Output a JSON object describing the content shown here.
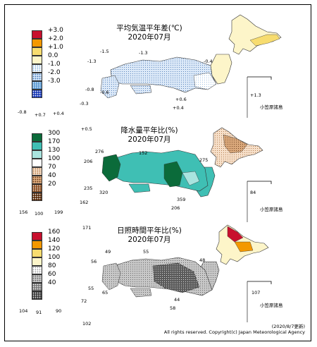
{
  "panels": [
    {
      "id": "temperature",
      "title_line1": "平均気温平年差(℃)",
      "title_line2": "2020年07月",
      "legend": [
        {
          "label": "+3.0",
          "color": "#c8102e",
          "pattern": "none"
        },
        {
          "label": "+2.0",
          "color": "#f39800",
          "pattern": "none"
        },
        {
          "label": "+1.0",
          "color": "#f7dc6f",
          "pattern": "none"
        },
        {
          "label": "0.0",
          "color": "#fdf5c9",
          "pattern": "none"
        },
        {
          "label": "-1.0",
          "color": "#ffffff",
          "pattern": "dots"
        },
        {
          "label": "-2.0",
          "color": "#cfe2f7",
          "pattern": "dots"
        },
        {
          "label": "-3.0",
          "color": "#5b9bd5",
          "pattern": "dots"
        },
        {
          "label": "",
          "color": "#1f3fb8",
          "pattern": "dots"
        }
      ],
      "station_labels": [
        "-1.5",
        "-1.3",
        "-1.3",
        "-0.4",
        "-0.8",
        "-0.6",
        "+0.6",
        "+0.4",
        "+1.3",
        "-0.8",
        "+0.7",
        "+0.4",
        "-0.3"
      ],
      "ogasawara_label": "小笠原諸島"
    },
    {
      "id": "precipitation",
      "title_line1": "降水量平年比(%)",
      "title_line2": "2020年07月",
      "legend": [
        {
          "label": "300",
          "color": "#0b6b3a",
          "pattern": "none"
        },
        {
          "label": "170",
          "color": "#3fbfb4",
          "pattern": "none"
        },
        {
          "label": "130",
          "color": "#a9e4df",
          "pattern": "none"
        },
        {
          "label": "100",
          "color": "#ffffff",
          "pattern": "none"
        },
        {
          "label": "70",
          "color": "#f6dfc9",
          "pattern": "dots"
        },
        {
          "label": "40",
          "color": "#d9a77a",
          "pattern": "dots"
        },
        {
          "label": "20",
          "color": "#8a4b1d",
          "pattern": "dots"
        },
        {
          "label": "",
          "color": "#5a2e0e",
          "pattern": "dots"
        }
      ],
      "station_labels": [
        "+0.5",
        "276",
        "152",
        "206",
        "275",
        "235",
        "320",
        "359",
        "206",
        "84",
        "156",
        "100",
        "199",
        "162"
      ],
      "ogasawara_label": "小笠原諸島"
    },
    {
      "id": "sunshine",
      "title_line1": "日照時間平年比(%)",
      "title_line2": "2020年07月",
      "legend": [
        {
          "label": "160",
          "color": "#c8102e",
          "pattern": "none"
        },
        {
          "label": "140",
          "color": "#f39800",
          "pattern": "none"
        },
        {
          "label": "120",
          "color": "#f7dc6f",
          "pattern": "none"
        },
        {
          "label": "100",
          "color": "#fdf5c9",
          "pattern": "none"
        },
        {
          "label": "80",
          "color": "#ffffff",
          "pattern": "dots"
        },
        {
          "label": "60",
          "color": "#c8c8c8",
          "pattern": "dots"
        },
        {
          "label": "40",
          "color": "#7a7a7a",
          "pattern": "dots"
        },
        {
          "label": "",
          "color": "#3a3a3a",
          "pattern": "dots"
        }
      ],
      "station_labels": [
        "171",
        "49",
        "55",
        "56",
        "48",
        "55",
        "65",
        "44",
        "58",
        "107",
        "104",
        "91",
        "90",
        "72",
        "102"
      ],
      "ogasawara_label": "小笠原諸島"
    }
  ],
  "footer": {
    "updated": "(2020/8/7更新)",
    "copyright": "All rights reserved. Copyright(c) Japan Meteorological Agency"
  }
}
